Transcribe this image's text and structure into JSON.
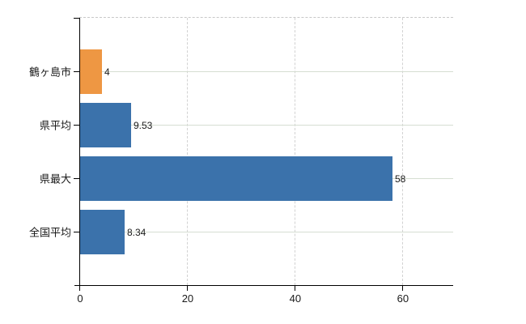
{
  "chart_data": {
    "type": "bar",
    "orientation": "horizontal",
    "title": "",
    "xlabel": "",
    "ylabel": "",
    "categories": [
      "鶴ヶ島市",
      "県平均",
      "県最大",
      "全国平均"
    ],
    "values": [
      4,
      9.53,
      58,
      8.34
    ],
    "value_labels": [
      "4",
      "9.53",
      "58",
      "8.34"
    ],
    "bar_colors": [
      "#ee9743",
      "#3b72ab",
      "#3b72ab",
      "#3b72ab"
    ],
    "xlim": [
      0,
      69.5
    ],
    "x_ticks": [
      0,
      20,
      40,
      60
    ],
    "x_tick_labels": [
      "0",
      "20",
      "40",
      "60"
    ],
    "grid": true,
    "gridline_horizontal": "solid",
    "gridline_vertical": "dashed",
    "legend": false
  },
  "colors": {
    "background": "#ffffff",
    "bar_blue": "#3b72ab",
    "bar_orange": "#ee9743",
    "axis": "#000000",
    "h_gridline": "#d6ded2",
    "v_gridline": "#d2d2d2",
    "top_border": "#c8c8c8",
    "text": "#1a1a1a"
  }
}
